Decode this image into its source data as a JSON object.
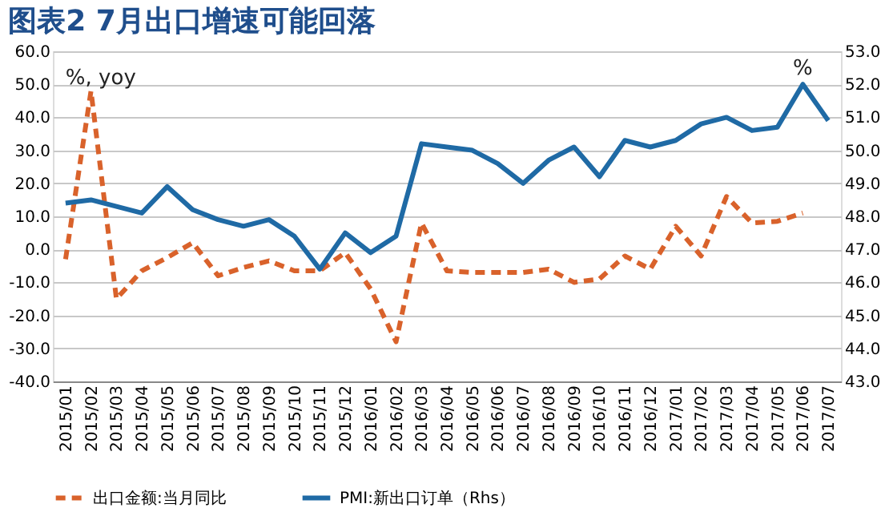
{
  "chart_data": {
    "type": "line",
    "title": "图表2 7月出口增速可能回落",
    "categories": [
      "2015/01",
      "2015/02",
      "2015/03",
      "2015/04",
      "2015/05",
      "2015/06",
      "2015/07",
      "2015/08",
      "2015/09",
      "2015/10",
      "2015/11",
      "2015/12",
      "2016/01",
      "2016/02",
      "2016/03",
      "2016/04",
      "2016/05",
      "2016/06",
      "2016/07",
      "2016/08",
      "2016/09",
      "2016/10",
      "2016/11",
      "2016/12",
      "2017/01",
      "2017/02",
      "2017/03",
      "2017/04",
      "2017/05",
      "2017/06",
      "2017/07"
    ],
    "series": [
      {
        "name": "出口金额:当月同比",
        "color": "#d9622b",
        "line_style": "dashed",
        "values": [
          -3,
          48,
          -15,
          -6.5,
          -2.5,
          2,
          -8,
          -5.5,
          -3.5,
          -6.5,
          -6.5,
          -1,
          -12,
          -28,
          8,
          -6.5,
          -7,
          -7,
          -7,
          -6,
          -10,
          -9,
          -2,
          -6,
          7,
          -2,
          16,
          8,
          8.5,
          11,
          null
        ]
      },
      {
        "name": "PMI:新出口订单（Rhs）",
        "color": "#1f6aa5",
        "line_style": "solid",
        "axis": "y2",
        "values": [
          48.4,
          48.5,
          48.3,
          48.1,
          48.9,
          48.2,
          47.9,
          47.7,
          47.9,
          47.4,
          46.4,
          47.5,
          46.9,
          47.4,
          50.2,
          50.1,
          50.0,
          49.6,
          49.0,
          49.7,
          50.1,
          49.2,
          50.3,
          50.1,
          50.3,
          50.8,
          51.0,
          50.6,
          50.7,
          52.0,
          50.9
        ]
      }
    ],
    "ylim": [
      -40,
      60
    ],
    "yticks": [
      {
        "value": -40,
        "label": "-40.0"
      },
      {
        "value": -30,
        "label": "-30.0"
      },
      {
        "value": -20,
        "label": "-20.0"
      },
      {
        "value": -10,
        "label": "-10.0"
      },
      {
        "value": 0,
        "label": "0.0"
      },
      {
        "value": 10,
        "label": "10.0"
      },
      {
        "value": 20,
        "label": "20.0"
      },
      {
        "value": 30,
        "label": "30.0"
      },
      {
        "value": 40,
        "label": "40.0"
      },
      {
        "value": 50,
        "label": "50.0"
      },
      {
        "value": 60,
        "label": "60.0"
      }
    ],
    "y2lim": [
      43,
      53
    ],
    "y2ticks": [
      {
        "value": 43,
        "label": "43.0"
      },
      {
        "value": 44,
        "label": "44.0"
      },
      {
        "value": 45,
        "label": "45.0"
      },
      {
        "value": 46,
        "label": "46.0"
      },
      {
        "value": 47,
        "label": "47.0"
      },
      {
        "value": 48,
        "label": "48.0"
      },
      {
        "value": 49,
        "label": "49.0"
      },
      {
        "value": 50,
        "label": "50.0"
      },
      {
        "value": 51,
        "label": "51.0"
      },
      {
        "value": 52,
        "label": "52.0"
      },
      {
        "value": 53,
        "label": "53.0"
      }
    ],
    "annotations": [
      "%, yoy",
      "%"
    ],
    "grid": "y",
    "legend": "bottom",
    "marker": "none"
  }
}
